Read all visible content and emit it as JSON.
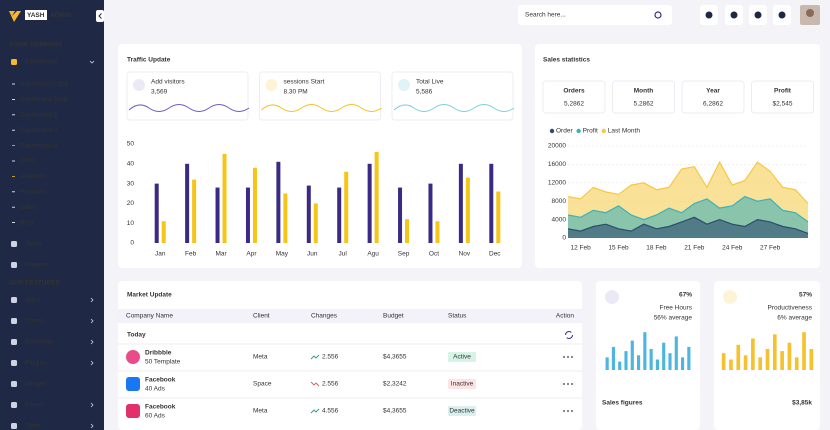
{
  "sidebar": {
    "logo": [
      "YASH",
      "ADMIN"
    ],
    "sections": [
      {
        "title": "YOUR COMPANY",
        "items": [
          {
            "label": "Dashboard",
            "highlight": true,
            "expandable": true,
            "children": [
              {
                "label": "Dashboard Light"
              },
              {
                "label": "Dashboard Dark"
              },
              {
                "label": "Dashboard 2"
              },
              {
                "label": "Dashboard 3"
              },
              {
                "label": "Dashboard 4",
                "highlight": true
              },
              {
                "label": "CRM"
              },
              {
                "label": "Analytics",
                "highlight": true
              },
              {
                "label": "Products"
              },
              {
                "label": "Sales"
              },
              {
                "label": "Blog"
              }
            ]
          },
          {
            "label": "Tasks"
          },
          {
            "label": "Projects"
          }
        ]
      },
      {
        "title": "OUR FEATURES",
        "items": [
          {
            "label": "Apps",
            "expandable": true
          },
          {
            "label": "Charts",
            "expandable": true
          },
          {
            "label": "Bootstrap",
            "expandable": true
          },
          {
            "label": "Plugins",
            "expandable": true
          },
          {
            "label": "Widget"
          },
          {
            "label": "Forms",
            "expandable": true
          },
          {
            "label": "Table",
            "expandable": true
          }
        ]
      }
    ]
  },
  "header": {
    "search": "Search here..."
  },
  "traffic": {
    "title": "Traffic Update",
    "stats": [
      {
        "label": "Add visitors",
        "value": "3,569"
      },
      {
        "label": "sessions Start",
        "value": "8.30 PM"
      },
      {
        "label": "Total Live",
        "value": "5,586"
      }
    ]
  },
  "sales": {
    "title": "Sales statistics",
    "stats": [
      {
        "label": "Orders",
        "value": "5,2862"
      },
      {
        "label": "Month",
        "value": "5,2862"
      },
      {
        "label": "Year",
        "value": "6,2862"
      },
      {
        "label": "Profit",
        "value": "$2,545"
      }
    ]
  },
  "market": {
    "title": "Market Update",
    "columns": [
      "Company Name",
      "Client",
      "Changes",
      "Budget",
      "Status",
      "Action"
    ],
    "group": "Today",
    "rows": [
      {
        "name": "Dribbble",
        "sub": "50 Template",
        "client": "Meta",
        "change": "2.556",
        "trend": "up",
        "budget": "$4,3655",
        "status": "Active"
      },
      {
        "name": "Facebook",
        "sub": "40 Ads",
        "client": "Space",
        "change": "2.556",
        "trend": "down",
        "budget": "$2,3242",
        "status": "Inactive"
      },
      {
        "name": "Facebook",
        "sub": "60 Ads",
        "client": "Meta",
        "change": "4.556",
        "trend": "up",
        "budget": "$4,3655",
        "status": "Deactive"
      }
    ]
  },
  "cards": [
    {
      "percent": "67%",
      "label": "Free Hours",
      "sub": "56% average",
      "color": "#3d6fd8"
    },
    {
      "percent": "57%",
      "label": "Productiveness",
      "sub": "6% average",
      "color": "#f5b82e"
    }
  ],
  "sales_figures": {
    "title": "Sales figures",
    "value": "$3,85k"
  },
  "chart_data": [
    {
      "type": "bar",
      "categories": [
        "Jan",
        "Feb",
        "Mar",
        "Apr",
        "May",
        "Jun",
        "Jul",
        "Agu",
        "Sep",
        "Oct",
        "Nov",
        "Dec"
      ],
      "series": [
        {
          "color": "#3b2a85",
          "values": [
            30,
            40,
            28,
            28,
            41,
            29,
            28,
            40,
            28,
            30,
            40,
            40
          ]
        },
        {
          "color": "#f5c518",
          "values": [
            11,
            32,
            45,
            38,
            25,
            20,
            36,
            46,
            12,
            11,
            33,
            26
          ]
        }
      ],
      "ylim": [
        0,
        50
      ],
      "yticks": [
        0,
        10,
        20,
        30,
        40,
        50
      ]
    },
    {
      "type": "area",
      "categories": [
        null,
        "12 Feb",
        null,
        null,
        "15 Feb",
        null,
        null,
        "18 Feb",
        null,
        null,
        "21 Feb",
        null,
        null,
        "24 Feb",
        null,
        null,
        "27 Feb",
        null,
        null,
        null
      ],
      "series": [
        {
          "name": "Order",
          "color": "#2b4c6f",
          "values": [
            2000,
            1500,
            2500,
            3000,
            2000,
            1500,
            3000,
            2000,
            2500,
            3500,
            4500,
            3000,
            4000,
            3000,
            2500,
            4000,
            3500,
            2500,
            2000,
            1000
          ]
        },
        {
          "name": "Profit",
          "color": "#3fb0b8",
          "values": [
            5000,
            4500,
            6000,
            5500,
            7000,
            5000,
            4000,
            5000,
            6500,
            5500,
            7500,
            8500,
            6500,
            7000,
            9000,
            8000,
            8500,
            6000,
            5500,
            3500
          ]
        },
        {
          "name": "Last Month",
          "color": "#f6c844",
          "values": [
            9000,
            8500,
            11000,
            10000,
            9500,
            11500,
            12000,
            10500,
            11000,
            15000,
            15500,
            11000,
            16500,
            11500,
            12500,
            16500,
            14500,
            11000,
            10500,
            7500
          ]
        }
      ],
      "ylim": [
        0,
        20000
      ],
      "yticks": [
        0,
        4000,
        8000,
        12000,
        16000,
        20000
      ],
      "grid": true
    },
    {
      "type": "bar",
      "color": "#4db6e0",
      "ylim": [
        0,
        100
      ],
      "values": [
        30,
        55,
        20,
        45,
        70,
        35,
        90,
        50,
        25,
        65,
        40,
        80,
        30,
        55
      ]
    },
    {
      "type": "bar",
      "color": "#f5c12e",
      "ylim": [
        0,
        100
      ],
      "values": [
        40,
        25,
        60,
        35,
        75,
        30,
        50,
        85,
        45,
        65,
        30,
        90,
        50
      ]
    }
  ]
}
